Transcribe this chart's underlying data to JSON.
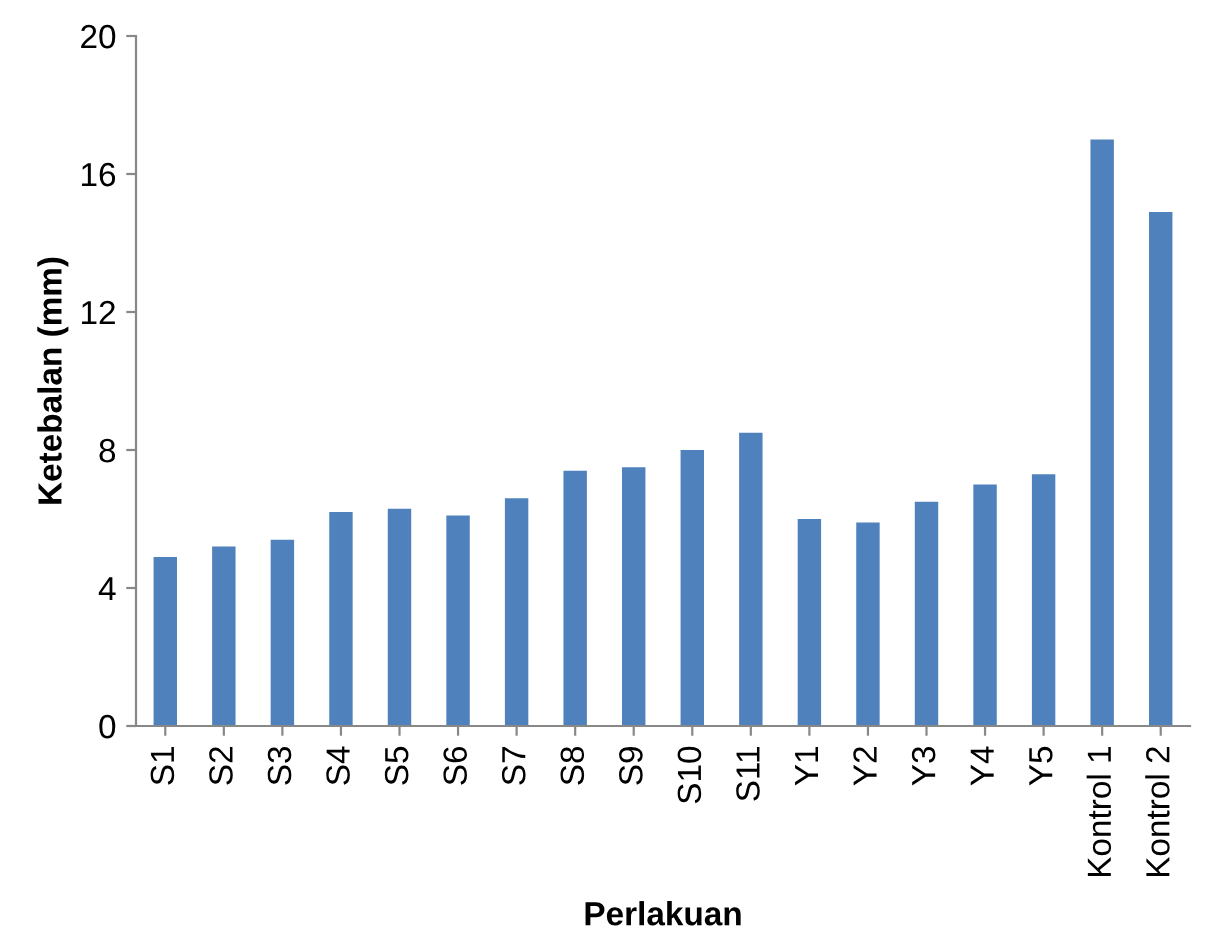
{
  "chart_data": {
    "type": "bar",
    "xlabel": "Perlakuan",
    "ylabel": "Ketebalan (mm)",
    "categories": [
      "S1",
      "S2",
      "S3",
      "S4",
      "S5",
      "S6",
      "S7",
      "S8",
      "S9",
      "S10",
      "S11",
      "Y1",
      "Y2",
      "Y3",
      "Y4",
      "Y5",
      "Kontrol 1",
      "Kontrol 2"
    ],
    "values": [
      4.9,
      5.2,
      5.4,
      6.2,
      6.3,
      6.1,
      6.6,
      7.4,
      7.5,
      8.0,
      8.5,
      6.0,
      5.9,
      6.5,
      7.0,
      7.3,
      17.0,
      14.9
    ],
    "color": "#4f81bd",
    "ylim": [
      0,
      20
    ],
    "yticks": [
      0,
      4,
      8,
      12,
      16,
      20
    ],
    "grid": false,
    "legend": false
  }
}
